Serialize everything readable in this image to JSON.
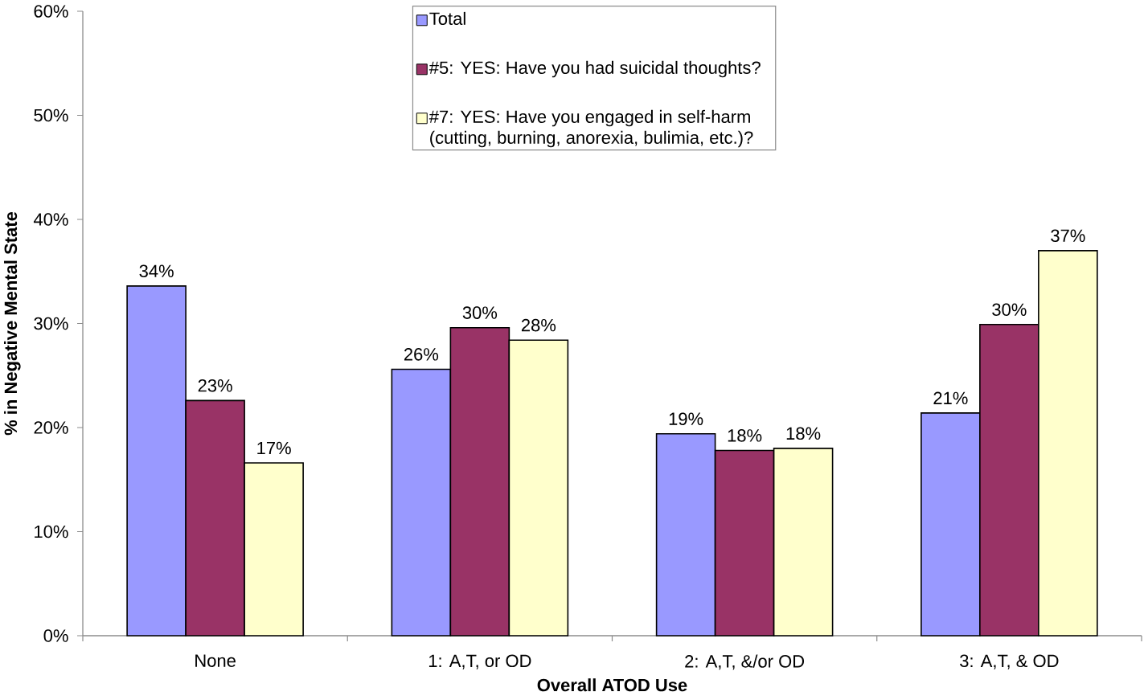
{
  "chart_data": {
    "type": "bar",
    "xlabel": "Overall ATOD Use",
    "ylabel": "% in Negative Mental State",
    "categories": [
      "None",
      "1: A,T, or OD",
      "2: A,T, &/or OD",
      "3: A,T, & OD"
    ],
    "series": [
      {
        "name": "Total",
        "color": "#9999ff",
        "values": [
          33.6,
          25.6,
          19.4,
          21.4
        ],
        "value_labels": [
          "34%",
          "26%",
          "19%",
          "21%"
        ]
      },
      {
        "name": "#5: YES: Have you had suicidal thoughts?",
        "color": "#993366",
        "values": [
          22.6,
          29.6,
          17.8,
          29.9
        ],
        "value_labels": [
          "23%",
          "30%",
          "18%",
          "30%"
        ]
      },
      {
        "name": "#7: YES: Have you engaged in self-harm (cutting, burning, anorexia, bulimia, etc.)?",
        "color": "#ffffcc",
        "values": [
          16.6,
          28.4,
          18.0,
          37.0
        ],
        "value_labels": [
          "17%",
          "28%",
          "18%",
          "37%"
        ]
      }
    ],
    "ylim": [
      0,
      60
    ],
    "yticks": [
      {
        "value": 0,
        "label": "0%"
      },
      {
        "value": 10,
        "label": "10%"
      },
      {
        "value": 20,
        "label": "20%"
      },
      {
        "value": 30,
        "label": "30%"
      },
      {
        "value": 40,
        "label": "40%"
      },
      {
        "value": 50,
        "label": "50%"
      },
      {
        "value": 60,
        "label": "60%"
      }
    ],
    "legend": "top"
  }
}
